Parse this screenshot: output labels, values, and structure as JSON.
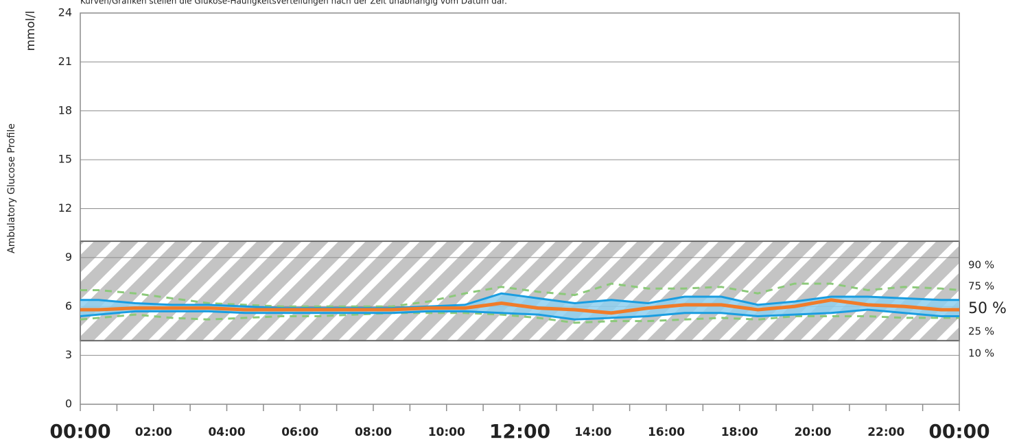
{
  "chart_data": {
    "type": "agp",
    "title": "Kurven/Grafiken stellen die Glukose-Häufigkeitsverteilungen nach der Zeit unabhängig vom Datum dar.",
    "y_label": "mmol/l",
    "side_label": "Ambulatory Glucose Profile",
    "x": [
      0,
      0.5,
      1.5,
      2.5,
      3.5,
      4.5,
      5.5,
      6.5,
      7.5,
      8.5,
      9.5,
      10.5,
      11.5,
      12.5,
      13.5,
      14.5,
      15.5,
      16.5,
      17.5,
      18.5,
      19.5,
      20.5,
      21.5,
      22.5,
      23.5,
      24
    ],
    "series": [
      {
        "name": "90 %",
        "color": "#8cc97a",
        "values": [
          7.0,
          7.0,
          6.8,
          6.5,
          6.2,
          6.1,
          6.0,
          6.0,
          6.0,
          6.0,
          6.3,
          6.8,
          7.2,
          6.9,
          6.7,
          7.4,
          7.1,
          7.1,
          7.2,
          6.8,
          7.4,
          7.4,
          7.0,
          7.2,
          7.1,
          7.0
        ]
      },
      {
        "name": "75 %",
        "color": "#1a9de0",
        "values": [
          6.4,
          6.4,
          6.2,
          6.1,
          6.1,
          6.0,
          5.9,
          5.9,
          5.9,
          5.9,
          6.0,
          6.1,
          6.8,
          6.5,
          6.2,
          6.4,
          6.2,
          6.6,
          6.6,
          6.1,
          6.3,
          6.6,
          6.6,
          6.5,
          6.4,
          6.4
        ]
      },
      {
        "name": "50 %",
        "color": "#f07c2a",
        "values": [
          5.8,
          5.8,
          5.9,
          5.9,
          5.9,
          5.8,
          5.8,
          5.8,
          5.8,
          5.8,
          5.9,
          5.9,
          6.2,
          5.9,
          5.8,
          5.6,
          5.9,
          6.1,
          6.1,
          5.8,
          6.0,
          6.4,
          6.1,
          6.0,
          5.8,
          5.8
        ]
      },
      {
        "name": "25 %",
        "color": "#1a9de0",
        "values": [
          5.4,
          5.5,
          5.7,
          5.7,
          5.7,
          5.6,
          5.6,
          5.6,
          5.6,
          5.6,
          5.7,
          5.7,
          5.6,
          5.5,
          5.2,
          5.3,
          5.4,
          5.6,
          5.6,
          5.4,
          5.5,
          5.6,
          5.8,
          5.6,
          5.4,
          5.4
        ]
      },
      {
        "name": "10 %",
        "color": "#8cc97a",
        "values": [
          5.2,
          5.3,
          5.5,
          5.3,
          5.2,
          5.3,
          5.4,
          5.4,
          5.5,
          5.6,
          5.6,
          5.6,
          5.5,
          5.3,
          5.0,
          5.1,
          5.1,
          5.2,
          5.3,
          5.2,
          5.4,
          5.4,
          5.4,
          5.3,
          5.3,
          5.3
        ]
      }
    ],
    "band_color": "#8fd0f0",
    "target_range": [
      3.9,
      10
    ],
    "xlim": [
      0,
      24
    ],
    "xticks": [
      {
        "value": 0,
        "label": "00:00"
      },
      {
        "value": 2,
        "label": "02:00"
      },
      {
        "value": 4,
        "label": "04:00"
      },
      {
        "value": 6,
        "label": "06:00"
      },
      {
        "value": 8,
        "label": "08:00"
      },
      {
        "value": 10,
        "label": "10:00"
      },
      {
        "value": 12,
        "label": "12:00"
      },
      {
        "value": 14,
        "label": "14:00"
      },
      {
        "value": 16,
        "label": "16:00"
      },
      {
        "value": 18,
        "label": "18:00"
      },
      {
        "value": 20,
        "label": "20:00"
      },
      {
        "value": 22,
        "label": "22:00"
      },
      {
        "value": 24,
        "label": "00:00"
      }
    ],
    "ylim": [
      0,
      24
    ],
    "yticks": [
      0,
      3,
      6,
      9,
      12,
      15,
      18,
      21,
      24
    ],
    "grid": true
  }
}
